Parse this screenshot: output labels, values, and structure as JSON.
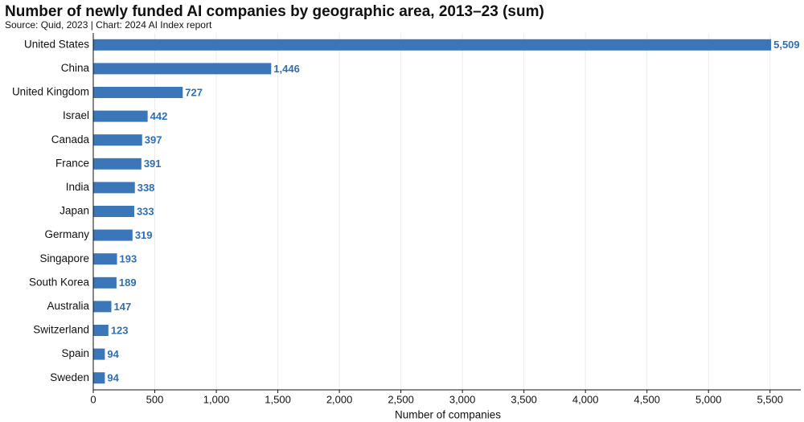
{
  "chart_data": {
    "type": "bar",
    "orientation": "horizontal",
    "title": "Number of newly funded AI companies by geographic area, 2013–23 (sum)",
    "subtitle": "Source: Quid, 2023 | Chart: 2024 AI Index report",
    "x_label": "Number of companies",
    "categories": [
      "United States",
      "China",
      "United Kingdom",
      "Israel",
      "Canada",
      "France",
      "India",
      "Japan",
      "Germany",
      "Singapore",
      "South Korea",
      "Australia",
      "Switzerland",
      "Spain",
      "Sweden"
    ],
    "values": [
      5509,
      1446,
      727,
      442,
      397,
      391,
      338,
      333,
      319,
      193,
      189,
      147,
      123,
      94,
      94
    ],
    "value_labels": [
      "5,509",
      "1,446",
      "727",
      "442",
      "397",
      "391",
      "338",
      "333",
      "319",
      "193",
      "189",
      "147",
      "123",
      "94",
      "94"
    ],
    "color": "#3a76b8",
    "xlim": [
      0,
      5750
    ],
    "xticks": [
      0,
      500,
      {
        "value": 1000,
        "label": "1,000"
      },
      {
        "value": 1500,
        "label": "1,500"
      },
      {
        "value": 2000,
        "label": "2,000"
      },
      {
        "value": 2500,
        "label": "2,500"
      },
      {
        "value": 3000,
        "label": "3,000"
      },
      {
        "value": 3500,
        "label": "3,500"
      },
      {
        "value": 4000,
        "label": "4,000"
      },
      {
        "value": 4500,
        "label": "4,500"
      },
      {
        "value": 5000,
        "label": "5,000"
      },
      {
        "value": 5500,
        "label": "5,500"
      }
    ],
    "grid": true
  }
}
